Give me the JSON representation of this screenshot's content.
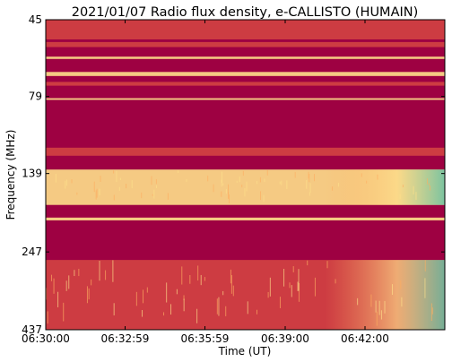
{
  "chart_data": {
    "type": "heatmap",
    "title": "2021/01/07  Radio flux density, e-CALLISTO (HUMAIN)",
    "xlabel": "Time (UT)",
    "ylabel": "Frequency (MHz)",
    "x_ticks": [
      "06:30:00",
      "06:32:59",
      "06:35:59",
      "06:39:00",
      "06:42:00"
    ],
    "x_tick_seconds": [
      0,
      179,
      359,
      540,
      720
    ],
    "x_range_seconds": [
      0,
      900
    ],
    "y_ticks": [
      45,
      79,
      139,
      247,
      437
    ],
    "y_range": [
      45,
      437
    ],
    "y_scale": "log",
    "y_inverted": true,
    "colormap": "Spectral_r",
    "colors": {
      "background": "#9e0142",
      "mid": "#f46d43",
      "high": "#fee08b",
      "peak": "#66c2a5"
    },
    "bands": [
      {
        "freq_range": [
          45,
          52
        ],
        "level": "moderate"
      },
      {
        "freq_range": [
          53,
          55
        ],
        "level": "moderate"
      },
      {
        "freq_range": [
          59,
          60
        ],
        "level": "high"
      },
      {
        "freq_range": [
          66,
          68
        ],
        "level": "high"
      },
      {
        "freq_range": [
          71,
          73
        ],
        "level": "moderate"
      },
      {
        "freq_range": [
          80,
          81
        ],
        "level": "high"
      },
      {
        "freq_range": [
          115,
          122
        ],
        "level": "moderate"
      },
      {
        "freq_range": [
          135,
          175
        ],
        "level": "high",
        "note": "brightening toward end of interval"
      },
      {
        "freq_range": [
          192,
          196
        ],
        "level": "high"
      },
      {
        "freq_range": [
          262,
          437
        ],
        "level": "moderate",
        "note": "brightening toward end of interval"
      }
    ]
  }
}
